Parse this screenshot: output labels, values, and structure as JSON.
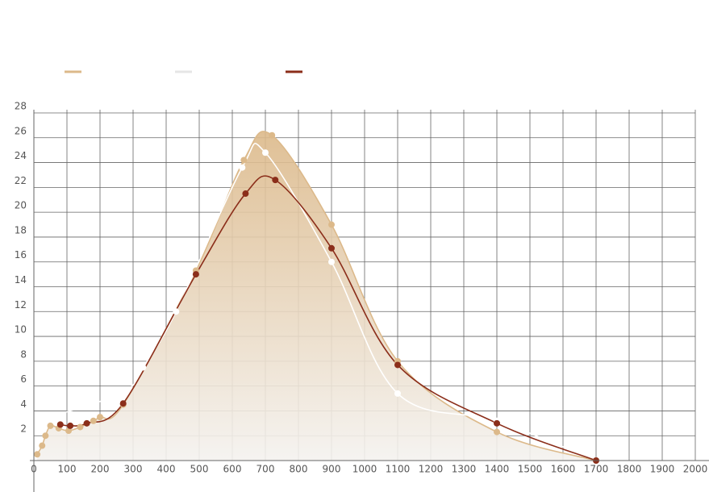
{
  "chart_data": {
    "type": "line",
    "grid": true,
    "xlim": [
      0,
      2000
    ],
    "xticks": [
      0,
      100,
      200,
      300,
      400,
      500,
      600,
      700,
      800,
      900,
      1000,
      1100,
      1200,
      1300,
      1400,
      1500,
      1600,
      1700,
      1800,
      1900,
      2000
    ],
    "ylim": [
      0,
      28
    ],
    "yticks": [
      2,
      4,
      6,
      8,
      10,
      12,
      14,
      16,
      18,
      20,
      22,
      24,
      26,
      28
    ],
    "series": [
      {
        "color": "#dcb98a",
        "area": true,
        "x": [
          10,
          25,
          35,
          50,
          75,
          105,
          140,
          180,
          200,
          270,
          490,
          635,
          720,
          900,
          1100,
          1400,
          1700
        ],
        "values": [
          0.5,
          1.2,
          2,
          2.8,
          2.6,
          2.4,
          2.7,
          3.2,
          3.5,
          4.5,
          15.3,
          24.2,
          26.2,
          19,
          8,
          2.3,
          0
        ]
      },
      {
        "color": "#ffffff",
        "x": [
          60,
          270,
          330,
          430,
          630,
          700,
          900,
          1100,
          1400,
          1700
        ],
        "values": [
          3.6,
          5.5,
          7.5,
          12,
          23.6,
          24.8,
          16,
          5.4,
          3.2,
          0
        ]
      },
      {
        "color": "#8b2e1a",
        "x": [
          80,
          110,
          160,
          270,
          490,
          640,
          730,
          900,
          1100,
          1400,
          1700
        ],
        "values": [
          2.9,
          2.8,
          3,
          4.6,
          15,
          21.5,
          22.6,
          17.1,
          7.7,
          3,
          0
        ]
      }
    ]
  }
}
